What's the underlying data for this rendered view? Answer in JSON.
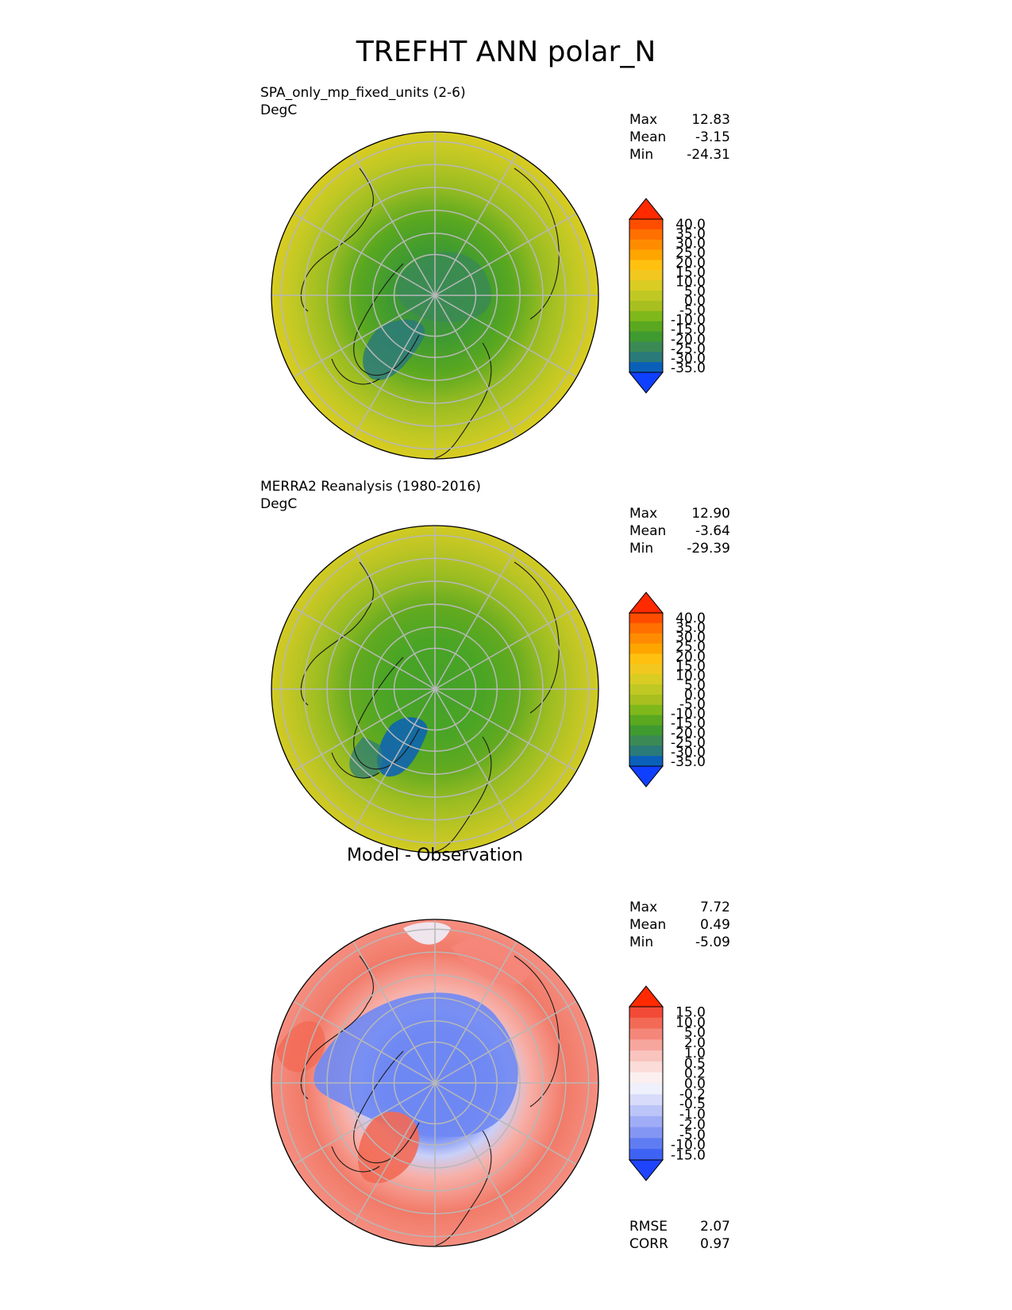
{
  "title": "TREFHT ANN polar_N",
  "chart_data": [
    {
      "type": "heatmap",
      "projection": "north-polar-stereographic",
      "title": "SPA_only_mp_fixed_units (2-6)",
      "units": "DegC",
      "stats": [
        {
          "label": "Max",
          "value": "12.83"
        },
        {
          "label": "Mean",
          "value": "-3.15"
        },
        {
          "label": "Min",
          "value": "-24.31"
        }
      ],
      "colorbar": {
        "levels": [
          "40.0",
          "35.0",
          "30.0",
          "25.0",
          "20.0",
          "15.0",
          "10.0",
          "5.0",
          "0.0",
          "-5.0",
          "-10.0",
          "-15.0",
          "-20.0",
          "-25.0",
          "-30.0",
          "-35.0"
        ],
        "colors": [
          "#ff2a00",
          "#ff4d00",
          "#ff7000",
          "#ff8c00",
          "#ffa500",
          "#ffc010",
          "#f0c820",
          "#d9cc22",
          "#c0c824",
          "#a8c01f",
          "#7fb81a",
          "#5aa820",
          "#3f9a30",
          "#3b8a55",
          "#2b7a7a",
          "#0a60b8",
          "#1040ff"
        ],
        "extend": "both"
      },
      "gridlines": true
    },
    {
      "type": "heatmap",
      "projection": "north-polar-stereographic",
      "title": "MERRA2 Reanalysis (1980-2016)",
      "units": "DegC",
      "stats": [
        {
          "label": "Max",
          "value": "12.90"
        },
        {
          "label": "Mean",
          "value": "-3.64"
        },
        {
          "label": "Min",
          "value": "-29.39"
        }
      ],
      "colorbar": {
        "levels": [
          "40.0",
          "35.0",
          "30.0",
          "25.0",
          "20.0",
          "15.0",
          "10.0",
          "5.0",
          "0.0",
          "-5.0",
          "-10.0",
          "-15.0",
          "-20.0",
          "-25.0",
          "-30.0",
          "-35.0"
        ],
        "colors": [
          "#ff2a00",
          "#ff4d00",
          "#ff7000",
          "#ff8c00",
          "#ffa500",
          "#ffc010",
          "#f0c820",
          "#d9cc22",
          "#c0c824",
          "#a8c01f",
          "#7fb81a",
          "#5aa820",
          "#3f9a30",
          "#3b8a55",
          "#2b7a7a",
          "#0a60b8",
          "#1040ff"
        ],
        "extend": "both"
      },
      "gridlines": true
    },
    {
      "type": "heatmap",
      "projection": "north-polar-stereographic",
      "title": "Model - Observation",
      "stats": [
        {
          "label": "Max",
          "value": "7.72"
        },
        {
          "label": "Mean",
          "value": "0.49"
        },
        {
          "label": "Min",
          "value": "-5.09"
        }
      ],
      "metrics": [
        {
          "label": "RMSE",
          "value": "2.07"
        },
        {
          "label": "CORR",
          "value": "0.97"
        }
      ],
      "colorbar": {
        "levels": [
          "15.0",
          "10.0",
          "5.0",
          "2.0",
          "1.0",
          "0.5",
          "0.2",
          "0.0",
          "-0.2",
          "-0.5",
          "-1.0",
          "-2.0",
          "-5.0",
          "-10.0",
          "-15.0"
        ],
        "colors": [
          "#ff2a00",
          "#f24a36",
          "#f26a55",
          "#f5877a",
          "#f7a69e",
          "#f9c4be",
          "#fbdcd8",
          "#fbf0ef",
          "#eef0fb",
          "#d8dcfa",
          "#bcc5f8",
          "#a0adf6",
          "#8496f4",
          "#5f7cf2",
          "#3e62f4",
          "#1f44ff"
        ],
        "extend": "both"
      },
      "gridlines": true
    }
  ]
}
